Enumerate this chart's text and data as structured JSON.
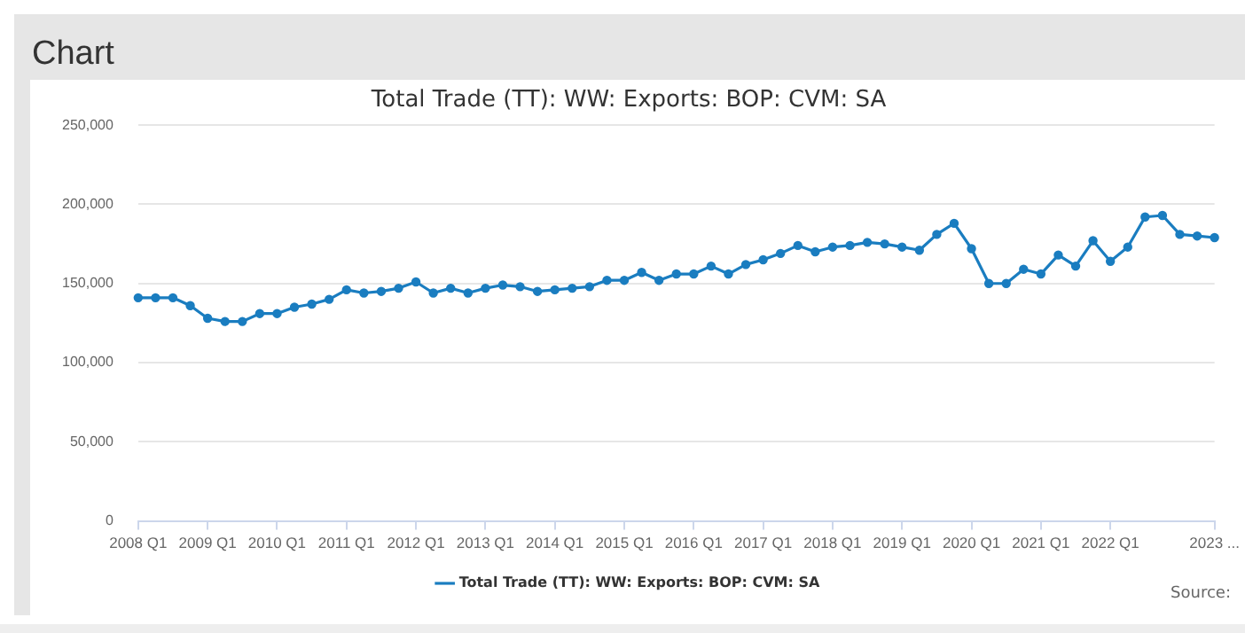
{
  "chart_data": {
    "type": "line",
    "title": "Total Trade (TT): WW: Exports: BOP: CVM: SA",
    "categories": [
      "2008 Q1",
      null,
      null,
      null,
      "2009 Q1",
      null,
      null,
      null,
      "2010 Q1",
      null,
      null,
      null,
      "2011 Q1",
      null,
      null,
      null,
      "2012 Q1",
      null,
      null,
      null,
      "2013 Q1",
      null,
      null,
      null,
      "2014 Q1",
      null,
      null,
      null,
      "2015 Q1",
      null,
      null,
      null,
      "2016 Q1",
      null,
      null,
      null,
      "2017 Q1",
      null,
      null,
      null,
      "2018 Q1",
      null,
      null,
      null,
      "2019 Q1",
      null,
      null,
      null,
      "2020 Q1",
      null,
      null,
      null,
      "2021 Q1",
      null,
      null,
      null,
      "2022 Q1",
      null,
      null,
      null,
      null,
      null,
      "2023 ..."
    ],
    "series": [
      {
        "name": "Total Trade (TT): WW: Exports: BOP: CVM: SA",
        "color": "#1a7dc0",
        "values": [
          141000,
          141000,
          141000,
          136000,
          128000,
          126000,
          126000,
          131000,
          131000,
          135000,
          137000,
          140000,
          146000,
          144000,
          145000,
          147000,
          151000,
          144000,
          147000,
          144000,
          147000,
          149000,
          148000,
          145000,
          146000,
          147000,
          148000,
          152000,
          152000,
          157000,
          152000,
          156000,
          156000,
          161000,
          156000,
          162000,
          165000,
          169000,
          174000,
          170000,
          173000,
          174000,
          176000,
          175000,
          173000,
          171000,
          181000,
          188000,
          172000,
          150000,
          150000,
          159000,
          156000,
          168000,
          161000,
          177000,
          164000,
          173000,
          192000,
          193000,
          181000,
          180000,
          179000
        ]
      }
    ],
    "ylim": [
      0,
      250000
    ],
    "yticks": [
      {
        "value": 0,
        "label": "0"
      },
      {
        "value": 50000,
        "label": "50,000"
      },
      {
        "value": 100000,
        "label": "100,000"
      },
      {
        "value": 150000,
        "label": "150,000"
      },
      {
        "value": 200000,
        "label": "200,000"
      },
      {
        "value": 250000,
        "label": "250,000"
      }
    ],
    "grid": "y",
    "legend": "bottom",
    "marker": "circle",
    "line_style": "solid",
    "annotations": [
      "Chart",
      "Source:"
    ]
  }
}
